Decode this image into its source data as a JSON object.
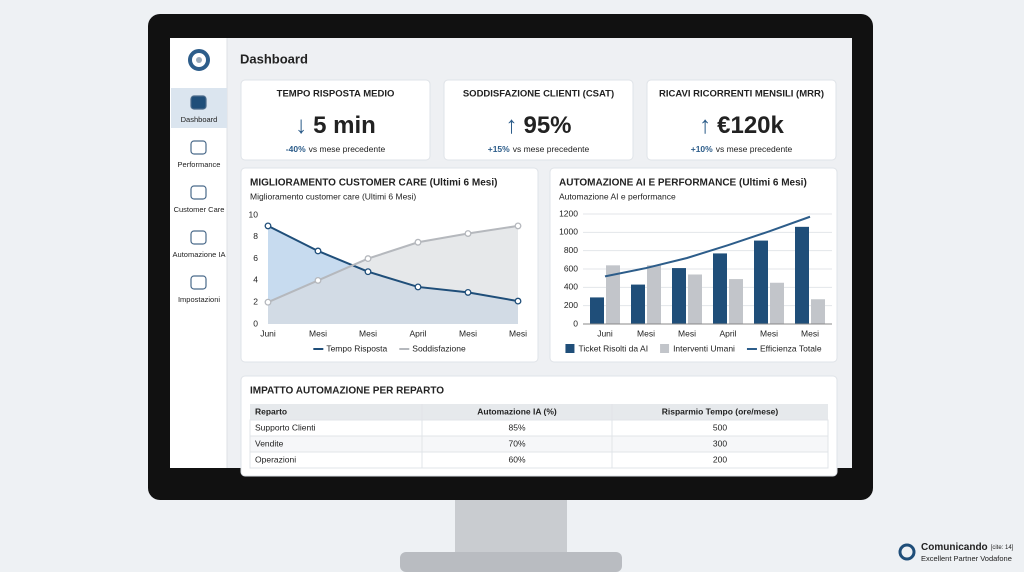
{
  "sidebar": {
    "items": [
      "Dashboard",
      "Performance",
      "Customer Care",
      "Automazione IA",
      "Impostazioni"
    ],
    "active": 0
  },
  "header": {
    "title": "Dashboard"
  },
  "kpis": [
    {
      "title": "TEMPO RISPOSTA MEDIO",
      "arrow": "↓",
      "value": "5 min",
      "change": "-40%",
      "change_label": "vs mese precedente"
    },
    {
      "title": "SODDISFAZIONE CLIENTI (CSAT)",
      "arrow": "↑",
      "value": "95%",
      "change": "+15%",
      "change_label": "vs mese precedente"
    },
    {
      "title": "RICAVI RICORRENTI MENSILI (MRR)",
      "arrow": "↑",
      "value": "€120k",
      "change": "+10%",
      "change_label": "vs mese precedente"
    }
  ],
  "charts": [
    {
      "type": "line",
      "title": "MIGLIORAMENTO CUSTOMER CARE (Ultimi 6 Mesi)",
      "subtitle": "Miglioramento customer care (Ultimi 6 Mesi)",
      "categories": [
        "Juni",
        "Mesi",
        "Mesi",
        "April",
        "Mesi",
        "Mesi"
      ],
      "ylim": [
        0,
        10
      ],
      "yticks": [
        0,
        2,
        4,
        6,
        8,
        10
      ],
      "grid": false,
      "series": [
        {
          "name": "Tempo Risposta",
          "color": "#1f4e79",
          "area": "#a9c8e6",
          "values": [
            9,
            6.7,
            4.8,
            3.4,
            2.9,
            2.1
          ]
        },
        {
          "name": "Soddisfazione",
          "color": "#b5b8bd",
          "area": "#d9dbde",
          "values": [
            2,
            4,
            6,
            7.5,
            8.3,
            9
          ]
        }
      ]
    },
    {
      "type": "bar",
      "title": "AUTOMAZIONE AI E PERFORMANCE (Ultimi 6 Mesi)",
      "subtitle": "Automazione AI e performance",
      "categories": [
        "Juni",
        "Mesi",
        "Mesi",
        "April",
        "Mesi",
        "Mesi"
      ],
      "ylim": [
        0,
        1200
      ],
      "yticks": [
        0,
        200,
        400,
        600,
        800,
        1000,
        1200
      ],
      "grid": true,
      "series": [
        {
          "name": "Ticket Risolti da AI",
          "color": "#1f4e79",
          "values": [
            290,
            430,
            610,
            770,
            910,
            1060
          ]
        },
        {
          "name": "Interventi Umani",
          "color": "#c2c5ca",
          "values": [
            640,
            640,
            540,
            490,
            450,
            270
          ]
        },
        {
          "name": "Efficienza Totale",
          "color": "#2d5d8a",
          "kind": "line",
          "values": [
            520,
            610,
            720,
            860,
            1010,
            1170
          ]
        }
      ]
    }
  ],
  "table": {
    "title": "IMPATTO AUTOMAZIONE PER REPARTO",
    "header": [
      "Reparto",
      "Automazione IA (%)",
      "Risparmio Tempo (ore/mese)"
    ],
    "rows": [
      [
        "Supporto Clienti",
        "85%",
        "500"
      ],
      [
        "Vendite",
        "70%",
        "300"
      ],
      [
        "Operazioni",
        "60%",
        "200"
      ]
    ]
  },
  "watermark": {
    "brand": "Comunicando",
    "cite": "[cite: 14]",
    "tagline": "Excellent Partner Vodafone"
  }
}
